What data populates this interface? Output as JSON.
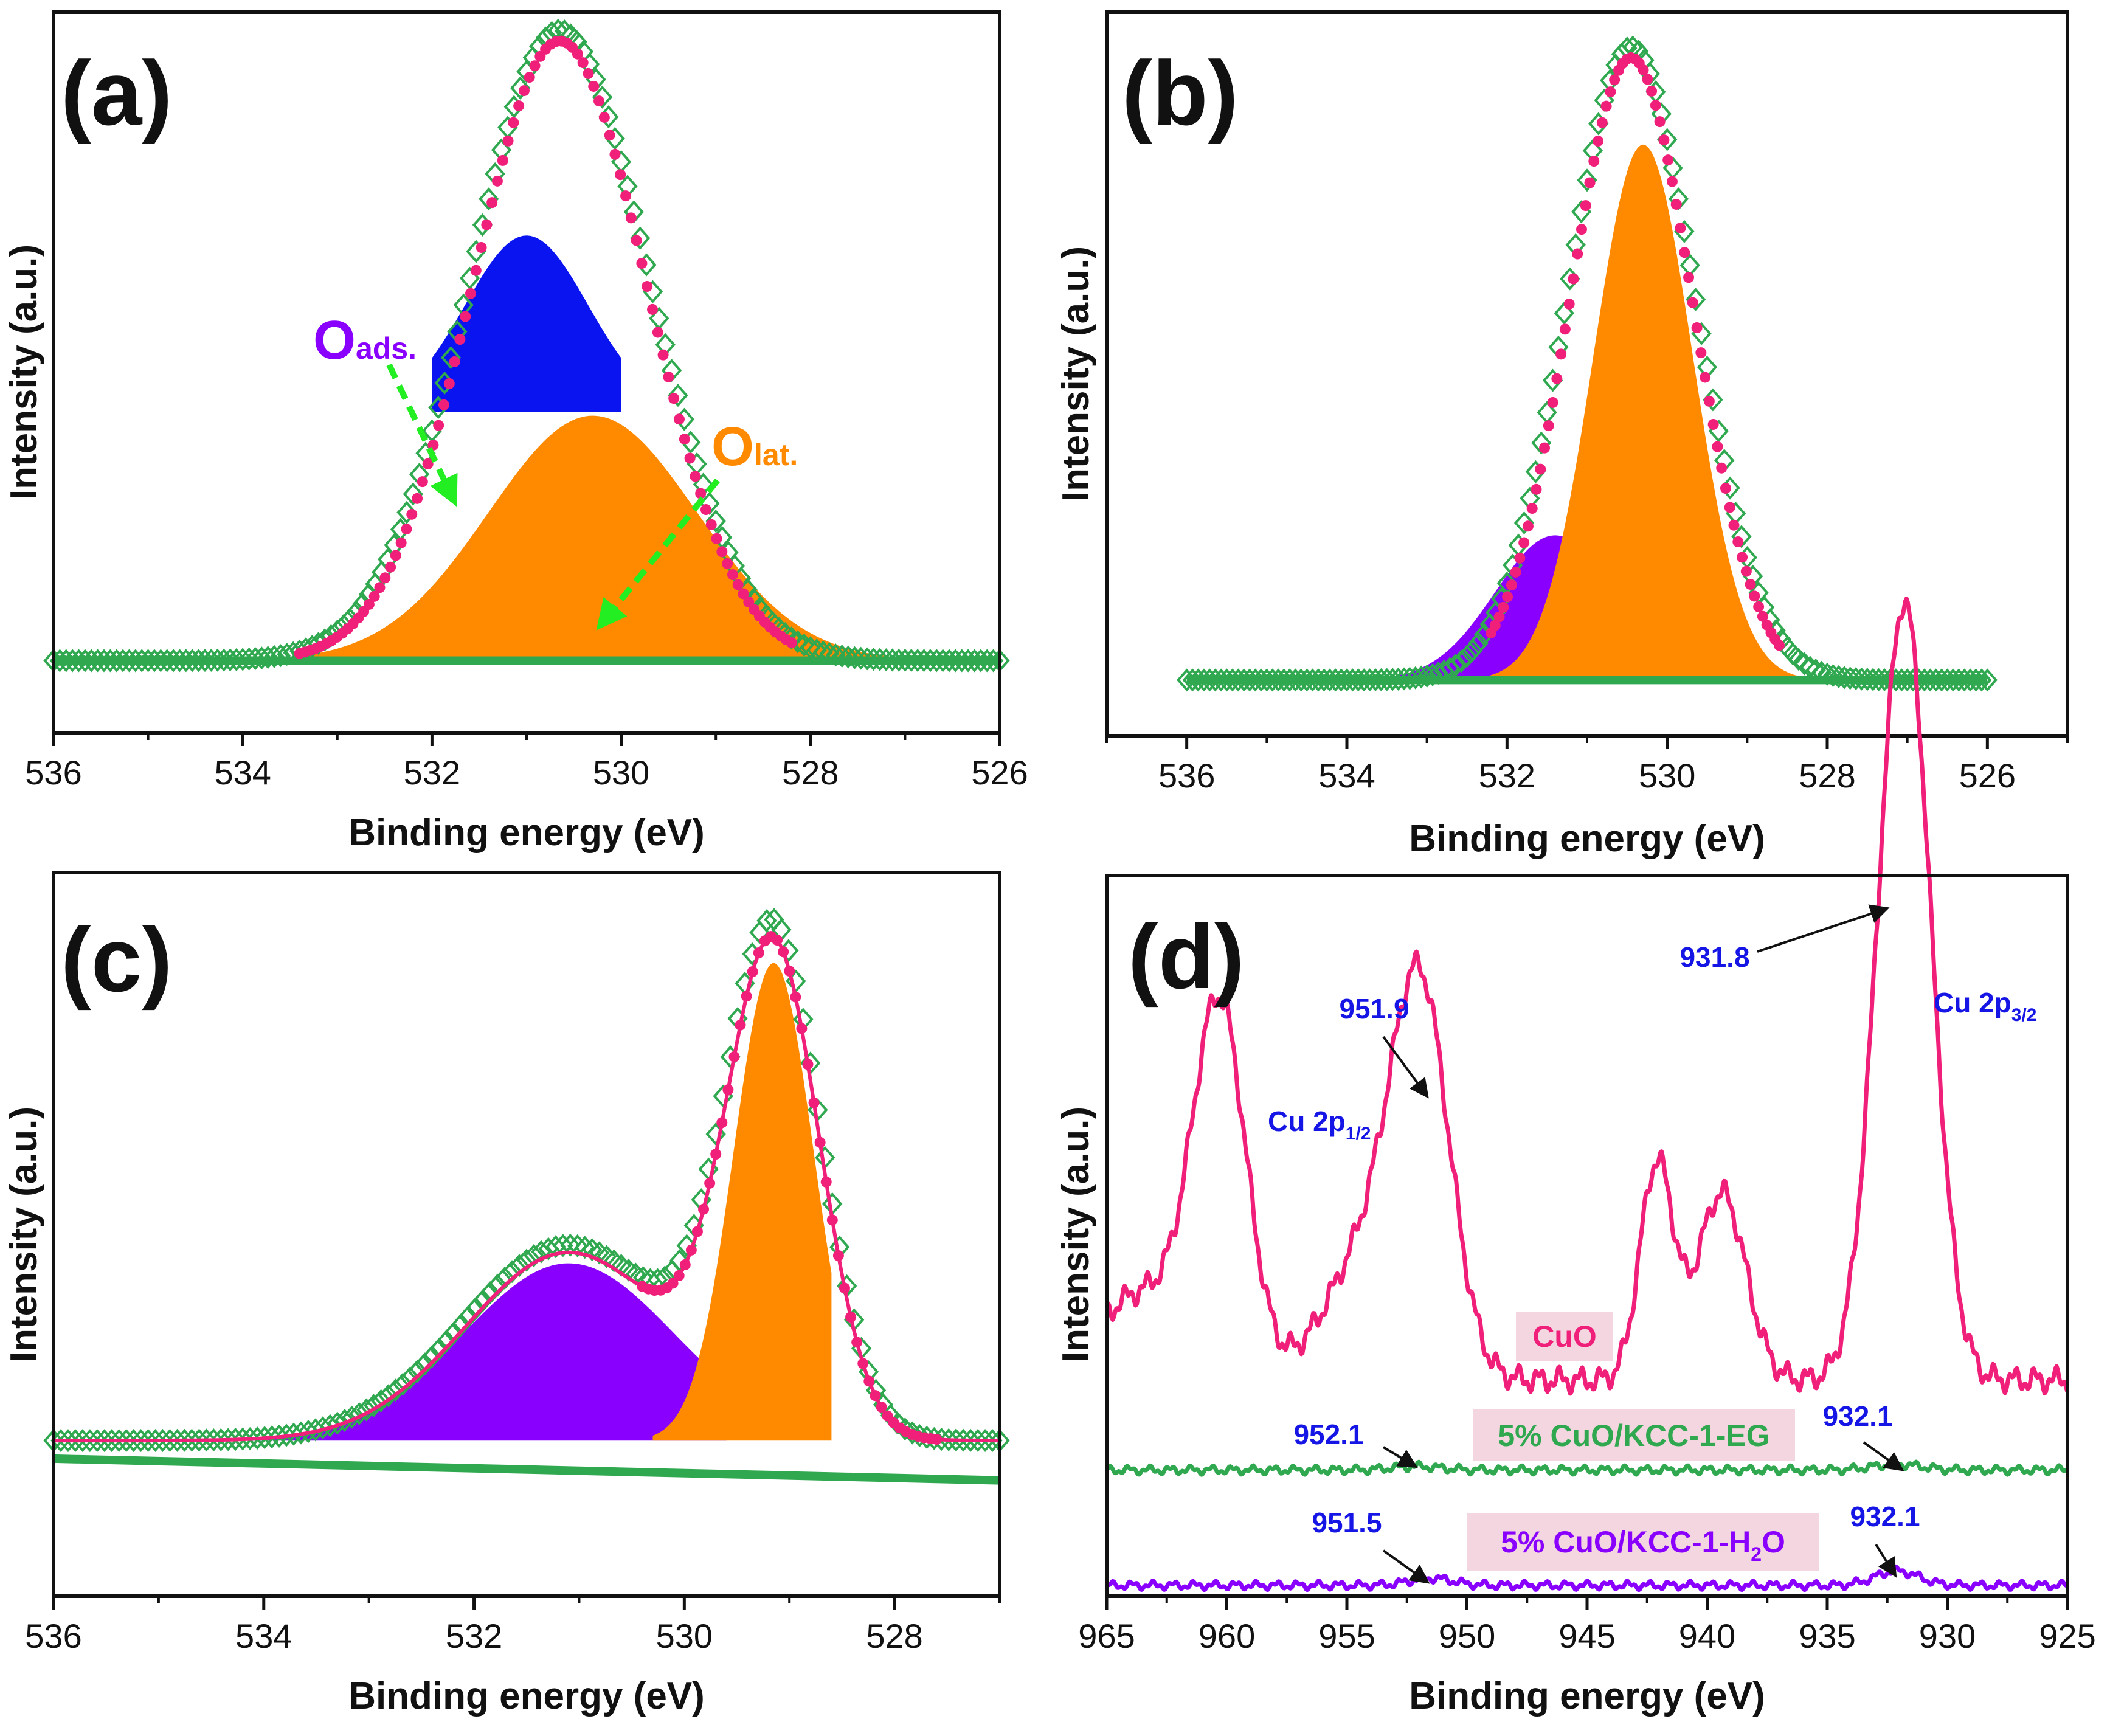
{
  "figure": {
    "colors": {
      "pink": "#f0207a",
      "green": "#2fa84f",
      "blue": "#0a14f0",
      "orange": "#ff8a00",
      "purple": "#8a00ff",
      "annotation_blue": "#1515e6",
      "arrow_green": "#22ee22",
      "label_box": "#f3d6df"
    }
  },
  "chart_data": [
    {
      "panel": "(a)",
      "type": "line",
      "xlabel": "Binding energy (eV)",
      "ylabel": "Intensity (a.u.)",
      "xlim": [
        536,
        526
      ],
      "xticks": [
        "536",
        "534",
        "532",
        "530",
        "528",
        "526"
      ],
      "ylim": [
        0,
        1
      ],
      "annotations": [
        {
          "main": "O",
          "sub": "ads.",
          "color": "#8a00ff"
        },
        {
          "main": "O",
          "sub": "lat.",
          "color": "#ff8a00"
        }
      ],
      "series": [
        {
          "name": "raw",
          "style": "green diamonds",
          "center": 530.65,
          "sigma": 0.95,
          "amp": 0.875,
          "baseline": 0.1
        },
        {
          "name": "fit",
          "style": "pink circles",
          "center": 530.65,
          "sigma": 0.92,
          "amp": 0.86,
          "baseline": 0.1
        },
        {
          "name": "O_ads",
          "style": "blue fill",
          "center": 531.0,
          "sigma": 0.65,
          "amp": 0.245,
          "base": 0.445,
          "range": [
            532.0,
            530.0
          ]
        },
        {
          "name": "O_lat",
          "style": "orange fill",
          "center": 530.3,
          "sigma": 1.1,
          "amp": 0.34,
          "baseline": 0.1
        }
      ]
    },
    {
      "panel": "(b)",
      "type": "line",
      "xlabel": "Binding energy (eV)",
      "ylabel": "Intensity (a.u.)",
      "xlim": [
        537,
        525
      ],
      "xticks": [
        "536",
        "534",
        "532",
        "530",
        "528",
        "526"
      ],
      "ylim": [
        0,
        1
      ],
      "series": [
        {
          "name": "raw",
          "style": "green diamonds",
          "center": 530.45,
          "sigma": 0.8,
          "amp": 0.875,
          "baseline": 0.077
        },
        {
          "name": "fit",
          "style": "pink circles",
          "center": 530.45,
          "sigma": 0.77,
          "amp": 0.86,
          "baseline": 0.077
        },
        {
          "name": "component_1",
          "style": "purple fill",
          "center": 531.4,
          "sigma": 0.75,
          "amp": 0.2,
          "baseline": 0.077
        },
        {
          "name": "component_2",
          "style": "orange fill",
          "center": 530.3,
          "sigma": 0.62,
          "amp": 0.74,
          "baseline": 0.077
        }
      ]
    },
    {
      "panel": "(c)",
      "type": "line",
      "xlabel": "Binding energy (eV)",
      "ylabel": "Intensity (a.u.)",
      "xlim": [
        536,
        527
      ],
      "xticks": [
        "536",
        "534",
        "532",
        "530",
        "528"
      ],
      "ylim": [
        0,
        1
      ],
      "series": [
        {
          "name": "raw",
          "style": "green diamonds",
          "peaks": [
            {
              "center": 531.1,
              "sigma": 1.0,
              "amp": 0.27
            },
            {
              "center": 529.15,
              "sigma": 0.45,
              "amp": 0.68
            }
          ],
          "baseline": 0.215
        },
        {
          "name": "fit",
          "style": "pink circles",
          "peaks": [
            {
              "center": 531.1,
              "sigma": 0.98,
              "amp": 0.26
            },
            {
              "center": 529.15,
              "sigma": 0.44,
              "amp": 0.66
            }
          ],
          "baseline": 0.215
        },
        {
          "name": "component_1",
          "style": "purple fill",
          "center": 531.1,
          "sigma": 1.0,
          "amp": 0.245,
          "baseline": 0.215
        },
        {
          "name": "component_2",
          "style": "orange fill",
          "center": 529.15,
          "sigma": 0.38,
          "amp": 0.66,
          "baseline": 0.215
        }
      ]
    },
    {
      "panel": "(d)",
      "type": "line",
      "xlabel": "Binding energy (eV)",
      "ylabel": "Intensity (a.u.)",
      "xlim": [
        965,
        925
      ],
      "xticks": [
        "965",
        "960",
        "955",
        "950",
        "945",
        "940",
        "935",
        "930",
        "925"
      ],
      "ylim": [
        0,
        1
      ],
      "series": [
        {
          "name": "CuO",
          "color": "#f0207a",
          "baseline": 0.3,
          "peaks": [
            {
              "center": 931.8,
              "sigma": 1.1,
              "amp": 1.08
            },
            {
              "center": 951.9,
              "sigma": 1.2,
              "amp": 0.48
            },
            {
              "center": 960.3,
              "sigma": 1.1,
              "amp": 0.5
            },
            {
              "center": 942.1,
              "sigma": 0.7,
              "amp": 0.3
            },
            {
              "center": 939.4,
              "sigma": 1.0,
              "amp": 0.26
            },
            {
              "center": 954.0,
              "sigma": 1.8,
              "amp": 0.18
            },
            {
              "center": 963.5,
              "sigma": 2.0,
              "amp": 0.12
            }
          ]
        },
        {
          "name": "5% CuO/KCC-1-EG",
          "color": "#2fa84f",
          "baseline": 0.175,
          "peaks": [
            {
              "center": 932.1,
              "sigma": 1.0,
              "amp": 0.008
            },
            {
              "center": 952.1,
              "sigma": 1.0,
              "amp": 0.005
            }
          ]
        },
        {
          "name": "5% CuO/KCC-1-H2O",
          "color": "#8a00ff",
          "baseline": 0.015,
          "peaks": [
            {
              "center": 932.1,
              "sigma": 0.9,
              "amp": 0.02
            },
            {
              "center": 951.5,
              "sigma": 0.9,
              "amp": 0.01
            }
          ]
        }
      ],
      "peak_labels": [
        "931.8",
        "951.9",
        "952.1",
        "932.1",
        "951.5",
        "932.1"
      ],
      "assignments": [
        {
          "text": "Cu 2p",
          "sub": "1/2"
        },
        {
          "text": "Cu 2p",
          "sub": "3/2"
        }
      ],
      "legend": [
        "CuO",
        "5% CuO/KCC-1-EG",
        "5% CuO/KCC-1-H",
        "2",
        "O"
      ]
    }
  ]
}
